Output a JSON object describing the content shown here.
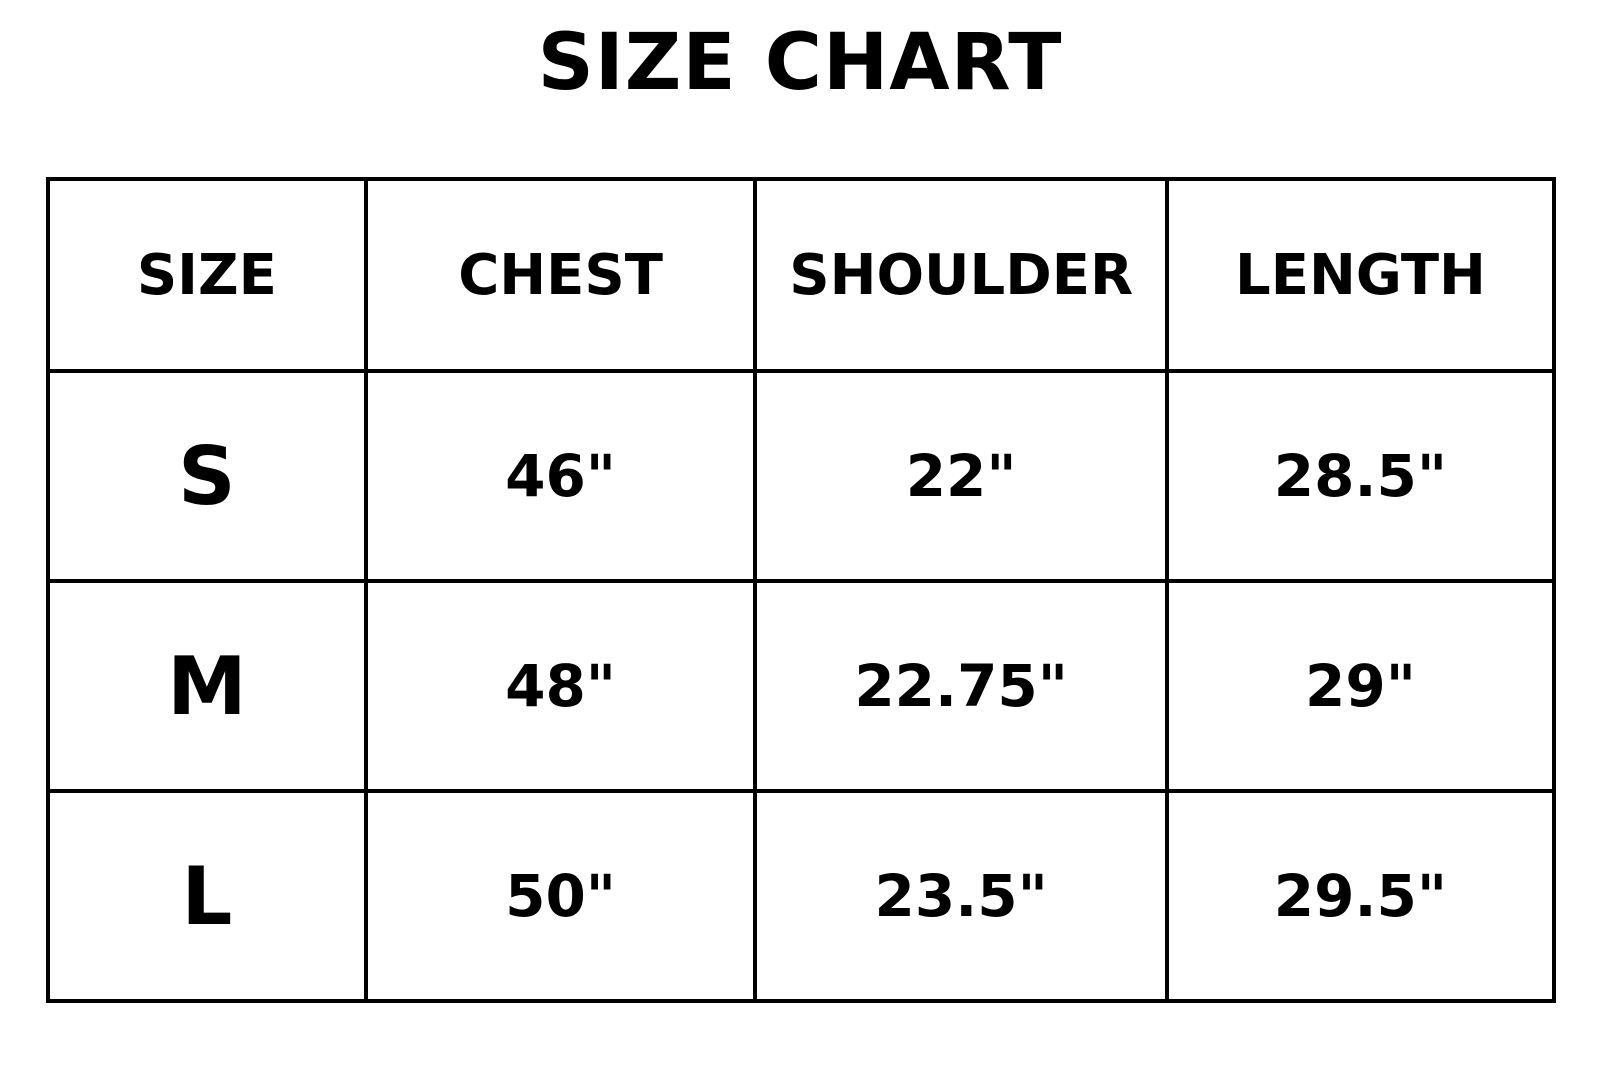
{
  "title": "SIZE CHART",
  "headers": [
    "SIZE",
    "CHEST",
    "SHOULDER",
    "LENGTH"
  ],
  "rows": [
    [
      "S",
      "46\"",
      "22\"",
      "28.5\""
    ],
    [
      "M",
      "48\"",
      "22.75\"",
      "29\""
    ],
    [
      "L",
      "50\"",
      "23.5\"",
      "29.5\""
    ]
  ]
}
